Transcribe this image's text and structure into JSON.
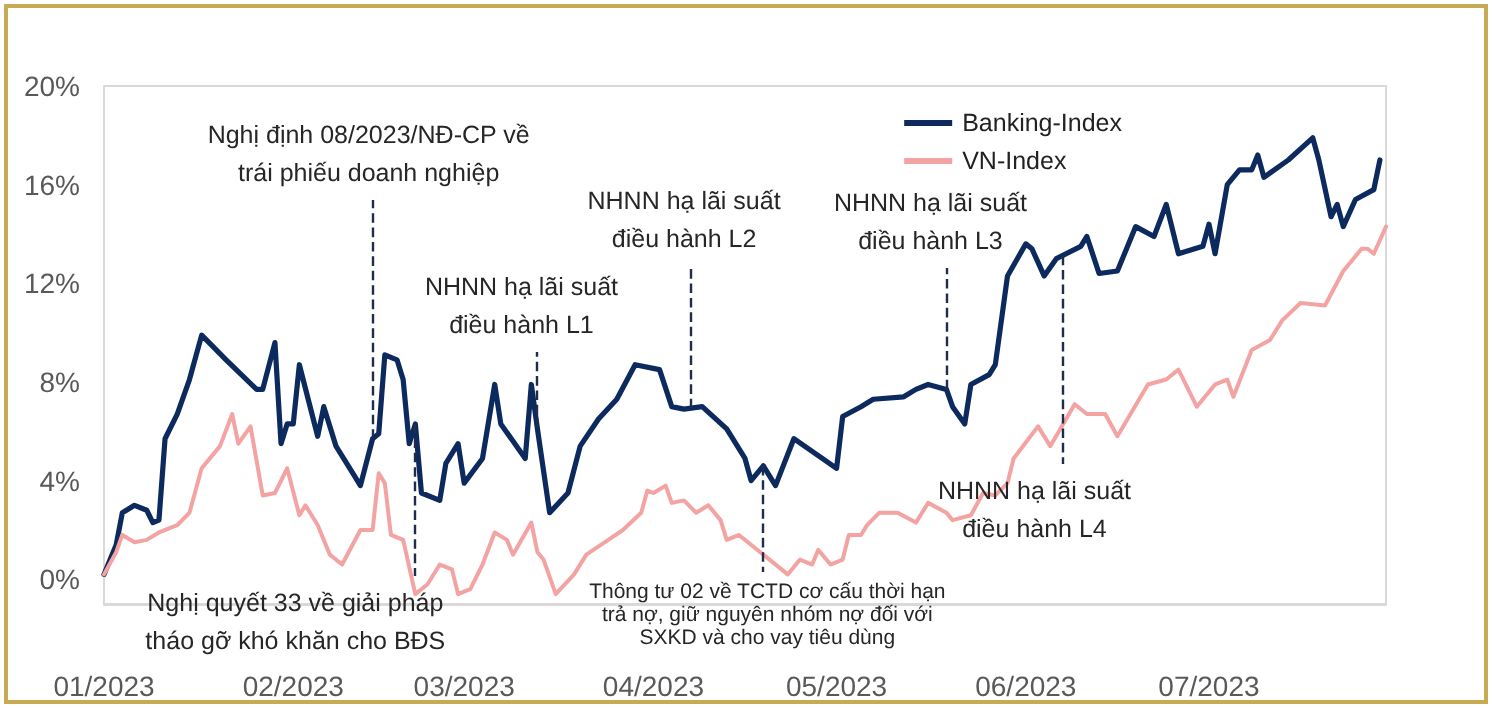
{
  "chart_data": {
    "type": "line",
    "xlim": [
      "2023-01-01",
      "2023-07-30"
    ],
    "xticks": [
      {
        "value": "2023-01-01",
        "label": "01/2023"
      },
      {
        "value": "2023-02-01",
        "label": "02/2023"
      },
      {
        "value": "2023-03-01",
        "label": "03/2023"
      },
      {
        "value": "2023-04-01",
        "label": "04/2023"
      },
      {
        "value": "2023-05-01",
        "label": "05/2023"
      },
      {
        "value": "2023-06-01",
        "label": "06/2023"
      },
      {
        "value": "2023-07-01",
        "label": "07/2023"
      }
    ],
    "ylim": [
      -1,
      20
    ],
    "yticks": [
      {
        "value": 0,
        "label": "0%"
      },
      {
        "value": 4,
        "label": "4%"
      },
      {
        "value": 8,
        "label": "8%"
      },
      {
        "value": 12,
        "label": "12%"
      },
      {
        "value": 16,
        "label": "16%"
      },
      {
        "value": 20,
        "label": "20%"
      }
    ],
    "grid": false,
    "legend": "top right",
    "series": [
      {
        "name": "Banking-Index",
        "color": "#0d2a5e",
        "x": [
          "2023-01-01",
          "2023-01-03",
          "2023-01-04",
          "2023-01-06",
          "2023-01-08",
          "2023-01-09",
          "2023-01-10",
          "2023-01-11",
          "2023-01-13",
          "2023-01-15",
          "2023-01-17",
          "2023-01-21",
          "2023-01-26",
          "2023-01-27",
          "2023-01-29",
          "2023-01-30",
          "2023-01-31",
          "2023-02-01",
          "2023-02-02",
          "2023-02-05",
          "2023-02-06",
          "2023-02-08",
          "2023-02-11",
          "2023-02-12",
          "2023-02-14",
          "2023-02-15",
          "2023-02-16",
          "2023-02-18",
          "2023-02-19",
          "2023-02-20",
          "2023-02-21",
          "2023-02-22",
          "2023-02-25",
          "2023-02-26",
          "2023-02-28",
          "2023-03-01",
          "2023-03-04",
          "2023-03-06",
          "2023-03-07",
          "2023-03-11",
          "2023-03-12",
          "2023-03-13",
          "2023-03-15",
          "2023-03-18",
          "2023-03-20",
          "2023-03-23",
          "2023-03-26",
          "2023-03-29",
          "2023-04-02",
          "2023-04-04",
          "2023-04-06",
          "2023-04-09",
          "2023-04-13",
          "2023-04-16",
          "2023-04-17",
          "2023-04-19",
          "2023-04-21",
          "2023-04-24",
          "2023-05-01",
          "2023-05-02",
          "2023-05-05",
          "2023-05-07",
          "2023-05-12",
          "2023-05-14",
          "2023-05-16",
          "2023-05-19",
          "2023-05-20",
          "2023-05-22",
          "2023-05-23",
          "2023-05-26",
          "2023-05-27",
          "2023-05-29",
          "2023-06-01",
          "2023-06-02",
          "2023-06-04",
          "2023-06-06",
          "2023-06-10",
          "2023-06-11",
          "2023-06-13",
          "2023-06-16",
          "2023-06-19",
          "2023-06-22",
          "2023-06-24",
          "2023-06-26",
          "2023-06-30",
          "2023-07-01",
          "2023-07-02",
          "2023-07-04",
          "2023-07-06",
          "2023-07-08",
          "2023-07-09",
          "2023-07-10",
          "2023-07-14",
          "2023-07-18",
          "2023-07-19",
          "2023-07-21",
          "2023-07-22",
          "2023-07-23",
          "2023-07-25",
          "2023-07-28",
          "2023-07-29"
        ],
        "values": [
          0.2,
          1.4,
          2.7,
          3.0,
          2.8,
          2.3,
          2.4,
          5.7,
          6.7,
          8.1,
          9.9,
          8.9,
          7.7,
          7.7,
          9.6,
          5.5,
          6.3,
          6.3,
          8.7,
          5.8,
          7.0,
          5.4,
          4.2,
          3.8,
          5.7,
          5.9,
          9.1,
          8.9,
          8.1,
          5.5,
          6.3,
          3.5,
          3.2,
          4.7,
          5.5,
          3.9,
          4.9,
          7.9,
          6.3,
          4.9,
          7.9,
          6.1,
          2.7,
          3.5,
          5.4,
          6.5,
          7.3,
          8.7,
          8.5,
          7.0,
          6.9,
          7.0,
          6.1,
          4.9,
          4.0,
          4.6,
          3.8,
          5.7,
          4.5,
          6.6,
          7.0,
          7.3,
          7.4,
          7.7,
          7.9,
          7.7,
          7.0,
          6.3,
          7.9,
          8.3,
          8.7,
          12.3,
          13.6,
          13.4,
          12.3,
          13.0,
          13.5,
          13.9,
          12.4,
          12.5,
          14.3,
          13.9,
          15.2,
          13.2,
          13.5,
          14.4,
          13.2,
          16.0,
          16.6,
          16.6,
          17.2,
          16.3,
          17.0,
          17.9,
          17.0,
          14.7,
          15.2,
          14.3,
          15.4,
          15.8,
          17.0
        ]
      },
      {
        "name": "VN-Index",
        "color": "#f4a3a3",
        "x": [
          "2023-01-01",
          "2023-01-03",
          "2023-01-04",
          "2023-01-06",
          "2023-01-08",
          "2023-01-10",
          "2023-01-13",
          "2023-01-15",
          "2023-01-17",
          "2023-01-20",
          "2023-01-22",
          "2023-01-23",
          "2023-01-25",
          "2023-01-27",
          "2023-01-29",
          "2023-01-31",
          "2023-02-02",
          "2023-02-03",
          "2023-02-05",
          "2023-02-07",
          "2023-02-09",
          "2023-02-12",
          "2023-02-14",
          "2023-02-15",
          "2023-02-16",
          "2023-02-17",
          "2023-02-19",
          "2023-02-21",
          "2023-02-23",
          "2023-02-25",
          "2023-02-27",
          "2023-02-28",
          "2023-03-02",
          "2023-03-04",
          "2023-03-06",
          "2023-03-08",
          "2023-03-09",
          "2023-03-12",
          "2023-03-13",
          "2023-03-14",
          "2023-03-16",
          "2023-03-19",
          "2023-03-21",
          "2023-03-24",
          "2023-03-27",
          "2023-03-30",
          "2023-03-31",
          "2023-04-01",
          "2023-04-03",
          "2023-04-04",
          "2023-04-06",
          "2023-04-08",
          "2023-04-10",
          "2023-04-12",
          "2023-04-13",
          "2023-04-15",
          "2023-04-18",
          "2023-04-19",
          "2023-04-23",
          "2023-04-25",
          "2023-04-27",
          "2023-04-28",
          "2023-04-30",
          "2023-05-02",
          "2023-05-03",
          "2023-05-05",
          "2023-05-06",
          "2023-05-08",
          "2023-05-11",
          "2023-05-14",
          "2023-05-16",
          "2023-05-19",
          "2023-05-20",
          "2023-05-23",
          "2023-05-25",
          "2023-05-27",
          "2023-05-29",
          "2023-05-30",
          "2023-06-03",
          "2023-06-05",
          "2023-06-09",
          "2023-06-11",
          "2023-06-14",
          "2023-06-16",
          "2023-06-21",
          "2023-06-24",
          "2023-06-26",
          "2023-06-29",
          "2023-07-02",
          "2023-07-04",
          "2023-07-05",
          "2023-07-08",
          "2023-07-11",
          "2023-07-13",
          "2023-07-16",
          "2023-07-20",
          "2023-07-23",
          "2023-07-26",
          "2023-07-27",
          "2023-07-28",
          "2023-07-30"
        ],
        "values": [
          0.2,
          1.1,
          1.8,
          1.5,
          1.6,
          1.9,
          2.2,
          2.7,
          4.5,
          5.4,
          6.7,
          5.5,
          6.2,
          3.4,
          3.5,
          4.5,
          2.6,
          3.0,
          2.2,
          1.0,
          0.6,
          2.0,
          2.0,
          4.3,
          3.9,
          1.8,
          1.6,
          -0.6,
          -0.2,
          0.6,
          0.4,
          -0.6,
          -0.4,
          0.6,
          1.9,
          1.6,
          1.0,
          2.3,
          1.1,
          0.8,
          -0.6,
          0.2,
          1.0,
          1.5,
          2.0,
          2.7,
          3.6,
          3.5,
          3.8,
          3.1,
          3.2,
          2.7,
          3.0,
          2.4,
          1.6,
          1.8,
          1.2,
          1.0,
          0.2,
          0.8,
          0.6,
          1.2,
          0.6,
          0.8,
          1.8,
          1.8,
          2.2,
          2.7,
          2.7,
          2.3,
          3.1,
          2.7,
          2.4,
          2.6,
          3.5,
          3.4,
          3.9,
          4.9,
          6.2,
          5.4,
          7.1,
          6.7,
          6.7,
          5.8,
          7.9,
          8.1,
          8.5,
          7.0,
          7.9,
          8.1,
          7.4,
          9.3,
          9.7,
          10.5,
          11.2,
          11.1,
          12.5,
          13.4,
          13.4,
          13.2,
          14.3
        ]
      }
    ],
    "ref_lines": [
      {
        "axis": "x",
        "value": "2023-02-14",
        "label": "Nghị định 08/2023/NĐ-CP về\ntrái phiếu doanh nghiệp",
        "color": "#1f2d4d",
        "line_style": "dashed"
      },
      {
        "axis": "x",
        "value": "2023-02-21",
        "label": "Nghị quyết 33 về giải pháp\ntháo gỡ khó khăn cho BĐS",
        "color": "#1f2d4d",
        "line_style": "dashed"
      },
      {
        "axis": "x",
        "value": "2023-03-13",
        "label": "NHNN hạ lãi suất\nđiều hành L1",
        "color": "#1f2d4d",
        "line_style": "dashed"
      },
      {
        "axis": "x",
        "value": "2023-04-07",
        "label": "NHNN hạ lãi suất\nđiều hành L2",
        "color": "#1f2d4d",
        "line_style": "dashed"
      },
      {
        "axis": "x",
        "value": "2023-04-19",
        "label": "Thông tư 02 về TCTD cơ cấu thời hạn\ntrả nợ, giữ nguyên nhóm nợ đối với\nSXKD và cho vay tiêu dùng",
        "color": "#1f2d4d",
        "line_style": "dashed"
      },
      {
        "axis": "x",
        "value": "2023-05-19",
        "label": "NHNN hạ lãi suất\nđiều hành L3",
        "color": "#1f2d4d",
        "line_style": "dashed"
      },
      {
        "axis": "x",
        "value": "2023-06-07",
        "label": "NHNN hạ lãi suất\nđiều hành L4",
        "color": "#1f2d4d",
        "line_style": "dashed"
      }
    ]
  }
}
